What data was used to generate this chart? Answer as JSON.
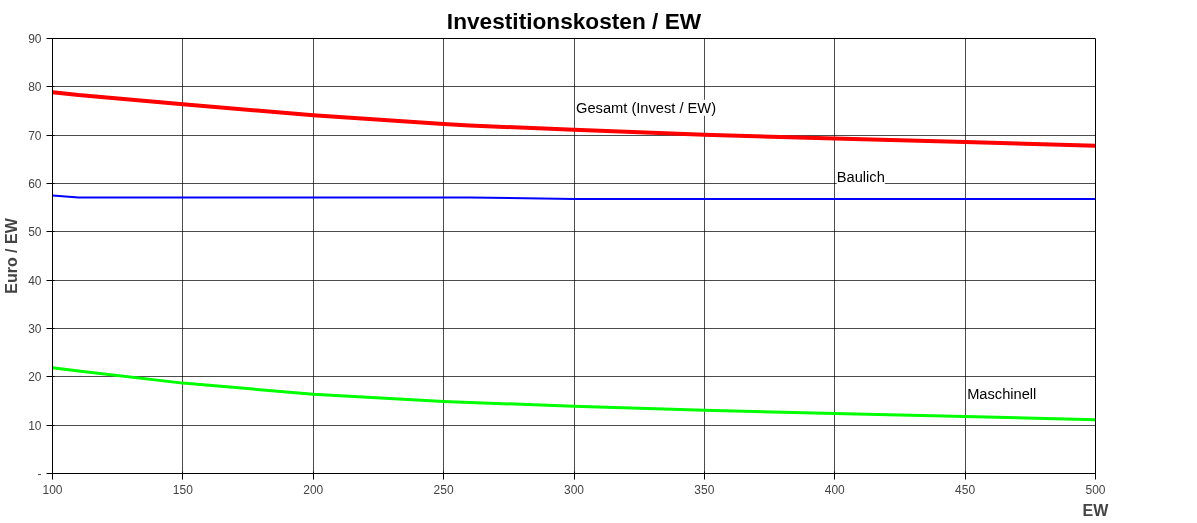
{
  "chart_data": {
    "type": "line",
    "title": "Investitionskosten / EW",
    "xlabel": "EW",
    "ylabel": "Euro / EW",
    "x": [
      100,
      110,
      150,
      200,
      250,
      260,
      300,
      350,
      400,
      450,
      500
    ],
    "series": [
      {
        "color": "#ff0000",
        "values": [
          78.9,
          78.3,
          76.4,
          74.1,
          72.3,
          72.0,
          71.1,
          70.1,
          69.3,
          68.6,
          67.8
        ]
      },
      {
        "color": "#0000ff",
        "values": [
          57.5,
          57.1,
          57.1,
          57.1,
          57.1,
          57.1,
          56.8,
          56.8,
          56.8,
          56.8,
          56.8
        ]
      },
      {
        "color": "#00ff00",
        "values": [
          21.9,
          21.2,
          18.7,
          16.4,
          14.9,
          14.7,
          13.9,
          13.1,
          12.4,
          11.8,
          11.1
        ]
      }
    ],
    "annotations": [
      {
        "text": "Gesamt (Invest / EW)",
        "x": 300,
        "y": 71.1
      },
      {
        "text": "Baulich",
        "x": 400,
        "y": 56.8
      },
      {
        "text": "Maschinell",
        "x": 450,
        "y": 11.8
      }
    ],
    "xlim": [
      100,
      500
    ],
    "ylim": [
      0,
      90
    ],
    "xticks": [
      100,
      150,
      200,
      250,
      300,
      350,
      400,
      450,
      500
    ],
    "yticks": [
      {
        "value": 0,
        "label": "-"
      },
      10,
      20,
      30,
      40,
      50,
      60,
      70,
      80,
      90
    ],
    "grid": true,
    "marker": "none",
    "line_style": "solid"
  }
}
